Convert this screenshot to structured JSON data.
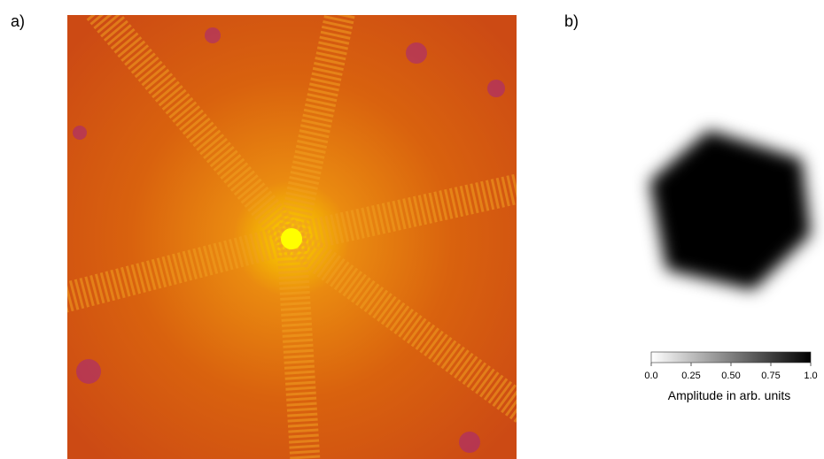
{
  "panels": [
    {
      "label": "a)"
    },
    {
      "label": "b)"
    }
  ],
  "colorbar": {
    "lim": [
      0,
      1
    ],
    "ticks": [
      {
        "value": 0,
        "label": "0.0"
      },
      0.25,
      {
        "value": 0.5,
        "label": "0.50"
      },
      0.75,
      {
        "value": 1,
        "label": "1.0"
      }
    ],
    "label": "Amplitude in arb. units"
  }
}
